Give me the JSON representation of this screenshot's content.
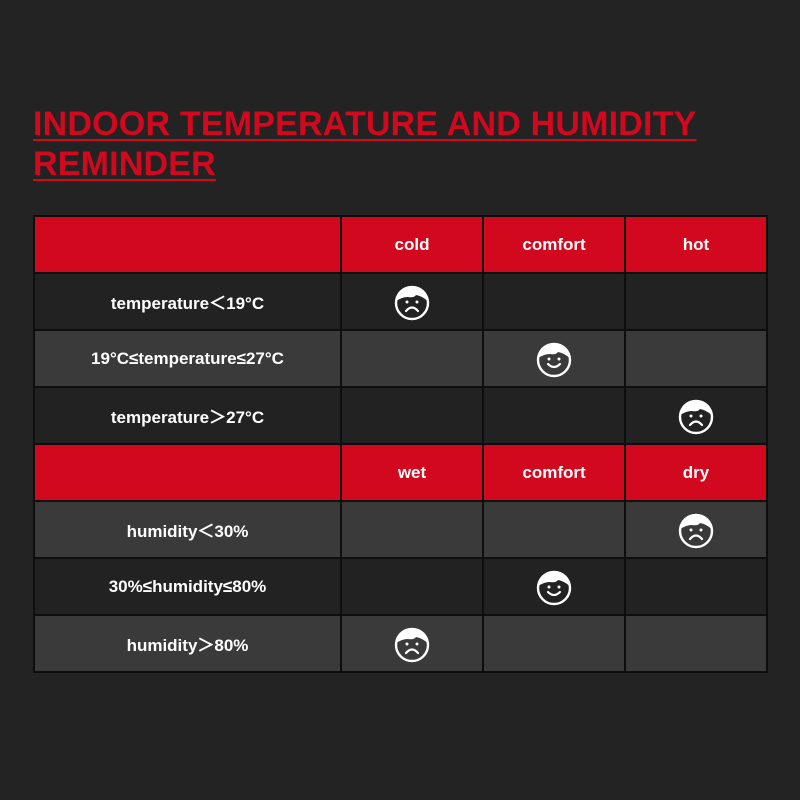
{
  "title": "INDOOR TEMPERATURE AND HUMIDITY REMINDER",
  "colors": {
    "accent": "#d2081e",
    "background": "#232323",
    "row_dark": "#222222",
    "row_light": "#3a3a3a"
  },
  "temperature": {
    "headers": [
      "",
      "cold",
      "comfort",
      "hot"
    ],
    "rows": [
      {
        "label": "temperature＜19°C",
        "face_column": 1,
        "face": "sad-face-icon"
      },
      {
        "label": "19°C≤temperature≤27°C",
        "face_column": 2,
        "face": "happy-face-icon"
      },
      {
        "label": "temperature＞27°C",
        "face_column": 3,
        "face": "sad-face-icon"
      }
    ]
  },
  "humidity": {
    "headers": [
      "",
      "wet",
      "comfort",
      "dry"
    ],
    "rows": [
      {
        "label": "humidity＜30%",
        "face_column": 3,
        "face": "sad-face-icon"
      },
      {
        "label": "30%≤humidity≤80%",
        "face_column": 2,
        "face": "happy-face-icon"
      },
      {
        "label": "humidity＞80%",
        "face_column": 1,
        "face": "sad-face-icon"
      }
    ]
  }
}
